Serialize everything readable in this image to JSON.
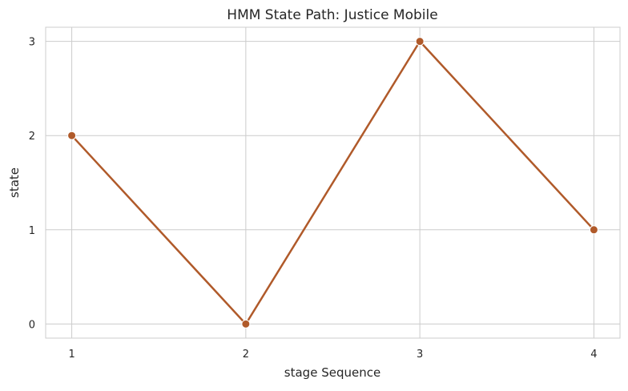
{
  "chart_data": {
    "type": "line",
    "title": "HMM State Path: Justice Mobile",
    "xlabel": "stage Sequence",
    "ylabel": "state",
    "x": [
      1,
      2,
      3,
      4
    ],
    "series": [
      {
        "values": [
          2,
          0,
          3,
          1
        ]
      }
    ],
    "xticks": [
      "1",
      "2",
      "3",
      "4"
    ],
    "yticks": [
      "0",
      "1",
      "2",
      "3"
    ],
    "xlim": [
      0.85,
      4.15
    ],
    "ylim": [
      -0.15,
      3.15
    ],
    "grid": true,
    "legend": "none",
    "colors": {
      "line": "#b05a2a",
      "grid": "#cccccc",
      "background": "#ffffff",
      "spine": "#cccccc"
    }
  }
}
